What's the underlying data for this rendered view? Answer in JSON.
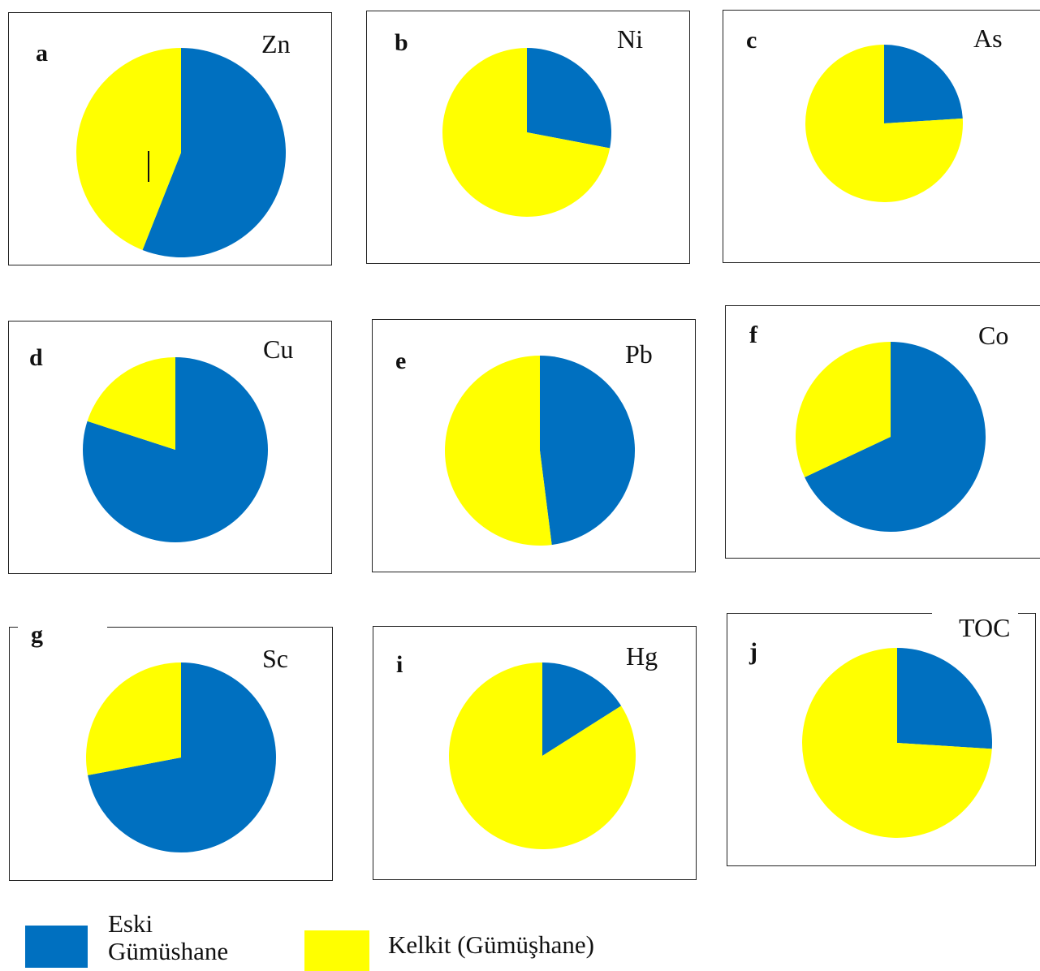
{
  "colors": {
    "eski": "#0070C0",
    "kelkit": "#FFFF00"
  },
  "legend": [
    {
      "label": "Eski Gümüshane",
      "color": "#0070C0"
    },
    {
      "label": "Kelkit (Gümüşhane)",
      "color": "#FFFF00"
    }
  ],
  "chart_data": [
    {
      "type": "pie",
      "panel": "a",
      "element": "Zn",
      "categories": [
        "Eski Gümüshane",
        "Kelkit (Gümüşhane)"
      ],
      "values": [
        56,
        44
      ]
    },
    {
      "type": "pie",
      "panel": "b",
      "element": "Ni",
      "categories": [
        "Eski Gümüshane",
        "Kelkit (Gümüşhane)"
      ],
      "values": [
        28,
        72
      ]
    },
    {
      "type": "pie",
      "panel": "c",
      "element": "As",
      "categories": [
        "Eski Gümüshane",
        "Kelkit (Gümüşhane)"
      ],
      "values": [
        24,
        76
      ]
    },
    {
      "type": "pie",
      "panel": "d",
      "element": "Cu",
      "categories": [
        "Eski Gümüshane",
        "Kelkit (Gümüşhane)"
      ],
      "values": [
        80,
        20
      ]
    },
    {
      "type": "pie",
      "panel": "e",
      "element": "Pb",
      "categories": [
        "Eski Gümüshane",
        "Kelkit (Gümüşhane)"
      ],
      "values": [
        48,
        52
      ]
    },
    {
      "type": "pie",
      "panel": "f",
      "element": "Co",
      "categories": [
        "Eski Gümüshane",
        "Kelkit (Gümüşhane)"
      ],
      "values": [
        68,
        32
      ]
    },
    {
      "type": "pie",
      "panel": "g",
      "element": "Sc",
      "categories": [
        "Eski Gümüshane",
        "Kelkit (Gümüşhane)"
      ],
      "values": [
        72,
        28
      ]
    },
    {
      "type": "pie",
      "panel": "i",
      "element": "Hg",
      "categories": [
        "Eski Gümüshane",
        "Kelkit (Gümüşhane)"
      ],
      "values": [
        16,
        84
      ]
    },
    {
      "type": "pie",
      "panel": "j",
      "element": "TOC",
      "categories": [
        "Eski Gümüshane",
        "Kelkit (Gümüşhane)"
      ],
      "values": [
        26,
        74
      ]
    }
  ]
}
